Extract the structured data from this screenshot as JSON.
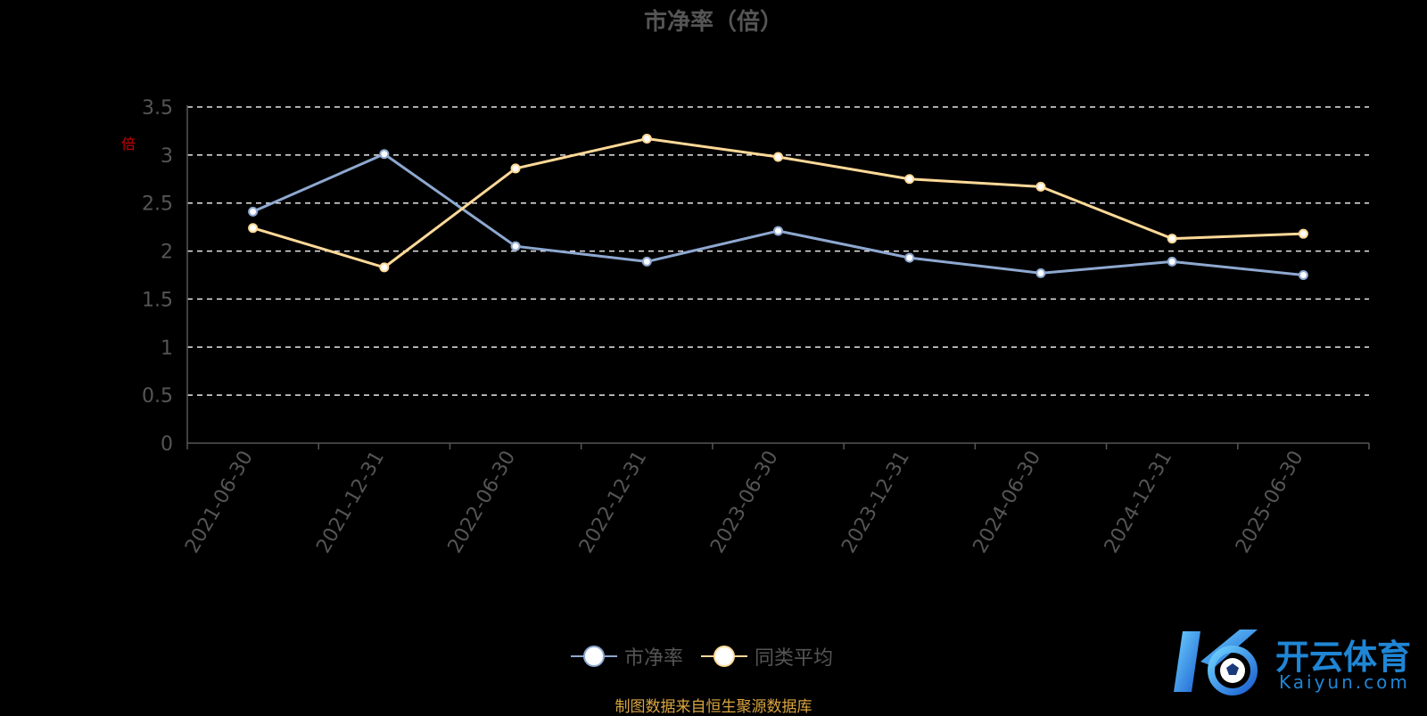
{
  "chart_data": {
    "type": "line",
    "title": "市净率（倍）",
    "unit_label": "倍",
    "categories": [
      "2021-06-30",
      "2021-12-31",
      "2022-06-30",
      "2022-12-31",
      "2023-06-30",
      "2023-12-31",
      "2024-06-30",
      "2024-12-31",
      "2025-06-30"
    ],
    "series": [
      {
        "name": "市净率",
        "color": "#8ea8d0",
        "values": [
          2.41,
          3.01,
          2.05,
          1.89,
          2.21,
          1.93,
          1.77,
          1.89,
          1.75
        ]
      },
      {
        "name": "同类平均",
        "color": "#ffd998",
        "values": [
          2.24,
          1.83,
          2.86,
          3.17,
          2.98,
          2.75,
          2.67,
          2.13,
          2.18
        ]
      }
    ],
    "y_ticks": [
      "0",
      "0.5",
      "1",
      "1.5",
      "2",
      "2.5",
      "3",
      "3.5"
    ],
    "ylim": [
      0,
      3.5
    ],
    "grid": true,
    "legend_position": "bottom-center"
  },
  "source": "制图数据来自恒生聚源数据库",
  "logo": {
    "text": "开云体育",
    "sub": "Kaiyun.com"
  }
}
